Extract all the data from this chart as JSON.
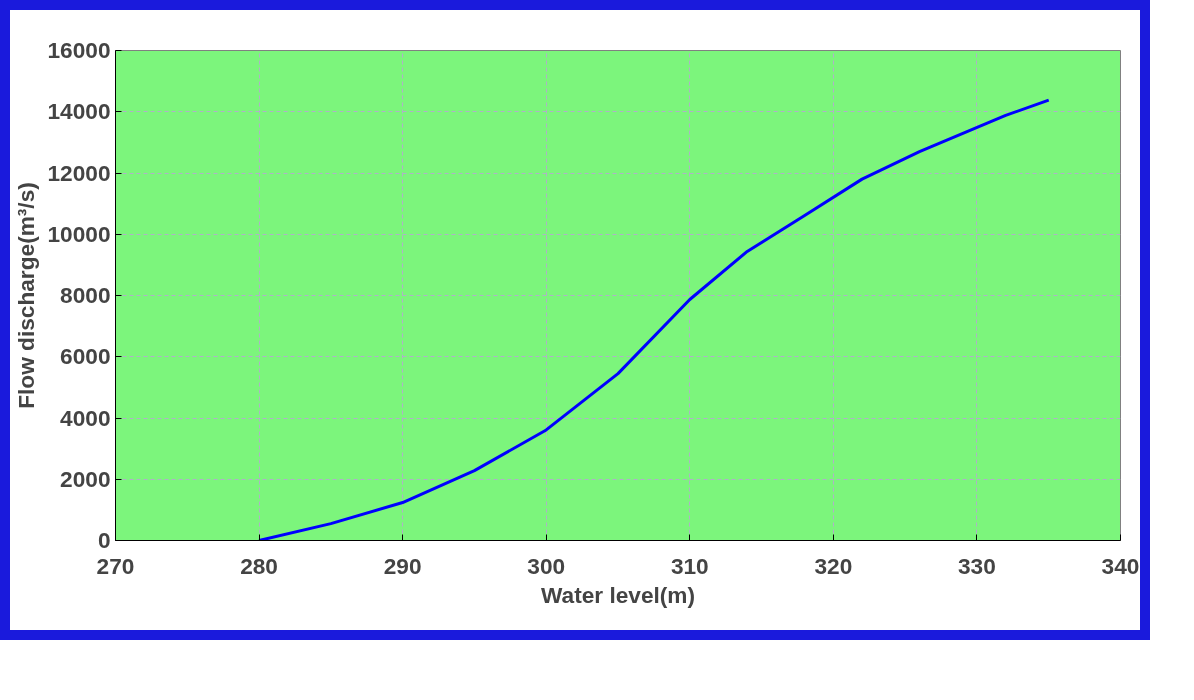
{
  "chart_data": {
    "type": "line",
    "xlabel": "Water level(m)",
    "ylabel": "Flow discharge(m³/s)",
    "x": [
      280,
      285,
      290,
      295,
      300,
      305,
      310,
      314,
      318,
      322,
      326,
      332,
      335
    ],
    "series": [
      {
        "color": "#0000ff",
        "values": [
          0,
          550,
          1240,
          2280,
          3610,
          5450,
          7870,
          9440,
          10610,
          11800,
          12700,
          13880,
          14380
        ]
      }
    ],
    "xlim": [
      270,
      340
    ],
    "xticks": [
      270,
      280,
      290,
      300,
      310,
      320,
      330,
      340
    ],
    "ylim": [
      0,
      16000
    ],
    "yticks": [
      0,
      2000,
      4000,
      6000,
      8000,
      10000,
      12000,
      14000,
      16000
    ],
    "grid": true,
    "line_style": "solid",
    "marker": "none"
  }
}
